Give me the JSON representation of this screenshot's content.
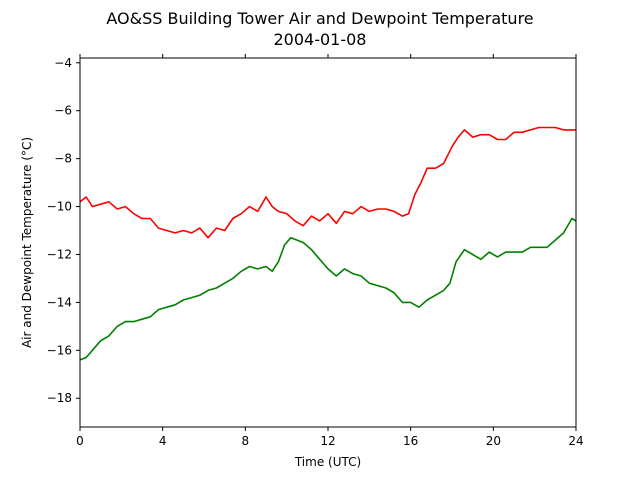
{
  "chart_data": {
    "type": "line",
    "title": "AO&SS Building Tower Air and Dewpoint Temperature",
    "subtitle": "2004-01-08",
    "xlabel": "Time (UTC)",
    "ylabel": "Air and Dewpoint Temperature (°C)",
    "xlim": [
      0,
      24
    ],
    "ylim": [
      -19.2,
      -3.8
    ],
    "xticks": [
      0,
      4,
      8,
      12,
      16,
      20,
      24
    ],
    "yticks": [
      -18,
      -16,
      -14,
      -12,
      -10,
      -8,
      -6,
      -4
    ],
    "xtick_labels": [
      "0",
      "4",
      "8",
      "12",
      "16",
      "20",
      "24"
    ],
    "ytick_labels": [
      "−18",
      "−16",
      "−14",
      "−12",
      "−10",
      "−8",
      "−6",
      "−4"
    ],
    "grid": false,
    "series": [
      {
        "color": "#ff0000",
        "x": [
          0,
          0.3,
          0.6,
          1.0,
          1.4,
          1.8,
          2.2,
          2.6,
          3.0,
          3.4,
          3.8,
          4.2,
          4.6,
          5.0,
          5.4,
          5.8,
          6.2,
          6.6,
          7.0,
          7.4,
          7.8,
          8.2,
          8.6,
          8.8,
          9.0,
          9.3,
          9.6,
          10.0,
          10.4,
          10.8,
          11.2,
          11.6,
          12.0,
          12.4,
          12.8,
          13.2,
          13.6,
          14.0,
          14.4,
          14.8,
          15.2,
          15.6,
          15.9,
          16.2,
          16.5,
          16.8,
          17.2,
          17.6,
          18.0,
          18.3,
          18.6,
          19.0,
          19.4,
          19.8,
          20.2,
          20.6,
          21.0,
          21.4,
          21.8,
          22.2,
          22.6,
          23.0,
          23.4,
          23.8,
          24.0
        ],
        "y": [
          -9.8,
          -9.6,
          -10.0,
          -9.9,
          -9.8,
          -10.1,
          -10.0,
          -10.3,
          -10.5,
          -10.5,
          -10.9,
          -11.0,
          -11.1,
          -11.0,
          -11.1,
          -10.9,
          -11.3,
          -10.9,
          -11.0,
          -10.5,
          -10.3,
          -10.0,
          -10.2,
          -9.9,
          -9.6,
          -10.0,
          -10.2,
          -10.3,
          -10.6,
          -10.8,
          -10.4,
          -10.6,
          -10.3,
          -10.7,
          -10.2,
          -10.3,
          -10.0,
          -10.2,
          -10.1,
          -10.1,
          -10.2,
          -10.4,
          -10.3,
          -9.5,
          -9.0,
          -8.4,
          -8.4,
          -8.2,
          -7.5,
          -7.1,
          -6.8,
          -7.1,
          -7.0,
          -7.0,
          -7.2,
          -7.2,
          -6.9,
          -6.9,
          -6.8,
          -6.7,
          -6.7,
          -6.7,
          -6.8,
          -6.8,
          -6.8
        ]
      },
      {
        "color": "#008000",
        "x": [
          0,
          0.3,
          0.6,
          1.0,
          1.4,
          1.8,
          2.2,
          2.6,
          3.0,
          3.4,
          3.8,
          4.2,
          4.6,
          5.0,
          5.4,
          5.8,
          6.2,
          6.6,
          7.0,
          7.4,
          7.8,
          8.2,
          8.6,
          9.0,
          9.3,
          9.6,
          9.9,
          10.2,
          10.5,
          10.8,
          11.2,
          11.6,
          12.0,
          12.4,
          12.8,
          13.2,
          13.6,
          14.0,
          14.4,
          14.8,
          15.2,
          15.6,
          16.0,
          16.4,
          16.8,
          17.2,
          17.6,
          17.9,
          18.2,
          18.6,
          19.0,
          19.4,
          19.8,
          20.2,
          20.6,
          21.0,
          21.4,
          21.8,
          22.2,
          22.6,
          23.0,
          23.4,
          23.8,
          24.0
        ],
        "y": [
          -16.4,
          -16.3,
          -16.0,
          -15.6,
          -15.4,
          -15.0,
          -14.8,
          -14.8,
          -14.7,
          -14.6,
          -14.3,
          -14.2,
          -14.1,
          -13.9,
          -13.8,
          -13.7,
          -13.5,
          -13.4,
          -13.2,
          -13.0,
          -12.7,
          -12.5,
          -12.6,
          -12.5,
          -12.7,
          -12.3,
          -11.6,
          -11.3,
          -11.4,
          -11.5,
          -11.8,
          -12.2,
          -12.6,
          -12.9,
          -12.6,
          -12.8,
          -12.9,
          -13.2,
          -13.3,
          -13.4,
          -13.6,
          -14.0,
          -14.0,
          -14.2,
          -13.9,
          -13.7,
          -13.5,
          -13.2,
          -12.3,
          -11.8,
          -12.0,
          -12.2,
          -11.9,
          -12.1,
          -11.9,
          -11.9,
          -11.9,
          -11.7,
          -11.7,
          -11.7,
          -11.4,
          -11.1,
          -10.5,
          -10.6
        ]
      }
    ]
  }
}
